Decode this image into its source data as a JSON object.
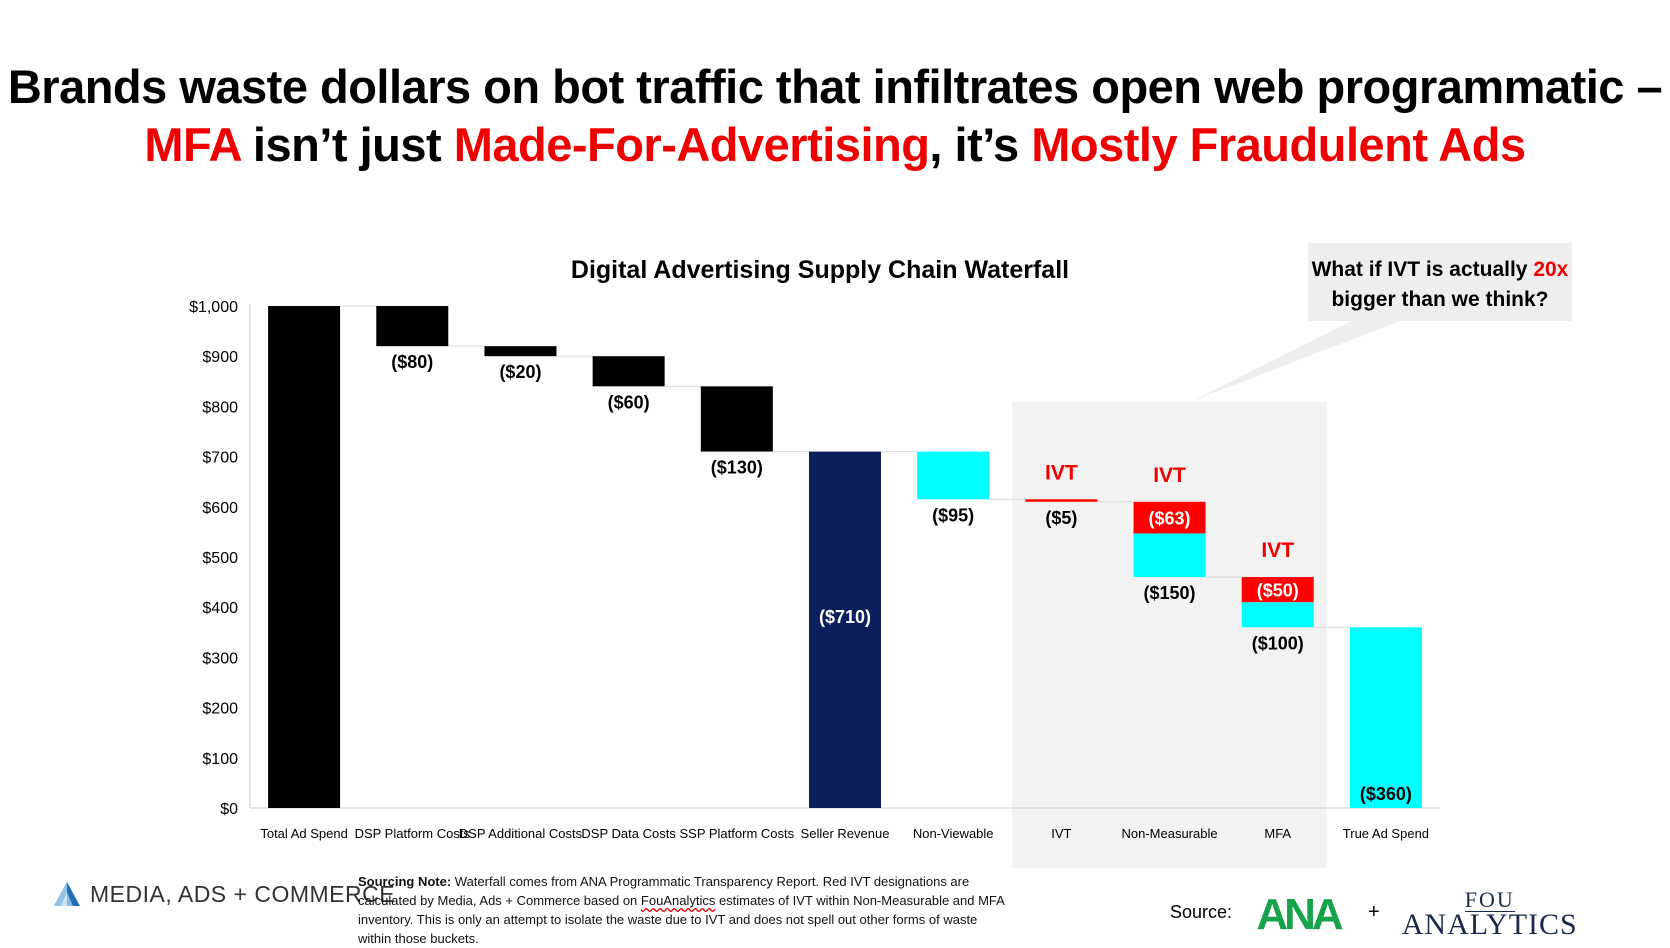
{
  "headline": {
    "line1": "Brands waste dollars on bot traffic that infiltrates open web programmatic –",
    "line2_part1": "MFA",
    "line2_part2": " isn’t just ",
    "line2_part3": "Made-For-Advertising",
    "line2_part4": ", it’s ",
    "line2_part5": "Mostly Fraudulent Ads"
  },
  "callout": {
    "text_before": "What if IVT is actually ",
    "highlight": "20x",
    "text_after": "bigger than we think?"
  },
  "colors": {
    "black": "#000000",
    "navy": "#0a1f5c",
    "cyan": "#00ffff",
    "red": "#ff0000",
    "accent_red": "#ee0000",
    "shade": "#f2f2f2"
  },
  "chart_data": {
    "type": "bar",
    "subtype": "waterfall",
    "title": "Digital Advertising Supply Chain Waterfall",
    "y_ticks": [
      "$0",
      "$100",
      "$200",
      "$300",
      "$400",
      "$500",
      "$600",
      "$700",
      "$800",
      "$900",
      "$1,000"
    ],
    "ylim": [
      0,
      1000
    ],
    "highlight_region_categories": [
      "IVT",
      "Non-Measurable",
      "MFA"
    ],
    "categories": [
      "Total Ad Spend",
      "DSP Platform Costs",
      "DSP Additional Costs",
      "DSP Data Costs",
      "SSP Platform Costs",
      "Seller Revenue",
      "Non-Viewable",
      "IVT",
      "Non-Measurable",
      "MFA",
      "True Ad Spend"
    ],
    "bars": [
      {
        "category": "Total Ad Spend",
        "segments": [
          {
            "base": 0,
            "top": 1000,
            "color": "black"
          }
        ],
        "label": ""
      },
      {
        "category": "DSP Platform Costs",
        "segments": [
          {
            "base": 920,
            "top": 1000,
            "color": "black"
          }
        ],
        "label": "($80)"
      },
      {
        "category": "DSP Additional Costs",
        "segments": [
          {
            "base": 900,
            "top": 920,
            "color": "black"
          }
        ],
        "label": "($20)"
      },
      {
        "category": "DSP Data Costs",
        "segments": [
          {
            "base": 840,
            "top": 900,
            "color": "black"
          }
        ],
        "label": "($60)"
      },
      {
        "category": "SSP Platform Costs",
        "segments": [
          {
            "base": 710,
            "top": 840,
            "color": "black"
          }
        ],
        "label": "($130)"
      },
      {
        "category": "Seller Revenue",
        "segments": [
          {
            "base": 0,
            "top": 710,
            "color": "navy"
          }
        ],
        "label": "($710)"
      },
      {
        "category": "Non-Viewable",
        "segments": [
          {
            "base": 615,
            "top": 710,
            "color": "cyan"
          }
        ],
        "label": "($95)"
      },
      {
        "category": "IVT",
        "segments": [
          {
            "base": 610,
            "top": 615,
            "color": "red"
          }
        ],
        "label": "($5)",
        "ivt_tag": "IVT"
      },
      {
        "category": "Non-Measurable",
        "segments": [
          {
            "base": 460,
            "top": 547,
            "color": "cyan"
          },
          {
            "base": 547,
            "top": 610,
            "color": "red",
            "label": "($63)"
          }
        ],
        "label": "($150)",
        "ivt_tag": "IVT"
      },
      {
        "category": "MFA",
        "segments": [
          {
            "base": 360,
            "top": 410,
            "color": "cyan"
          },
          {
            "base": 410,
            "top": 460,
            "color": "red",
            "label": "($50)"
          }
        ],
        "label": "($100)",
        "ivt_tag": "IVT"
      },
      {
        "category": "True Ad Spend",
        "segments": [
          {
            "base": 0,
            "top": 360,
            "color": "cyan"
          }
        ],
        "label": "($360)"
      }
    ]
  },
  "footer": {
    "brand_name": "MEDIA, ADS + COMMERCE",
    "note_label": "Sourcing Note:",
    "note_text_1": " Waterfall comes from ANA Programmatic Transparency Report. Red IVT designations are calculated by Media, Ads + Commerce based on ",
    "note_underlined": "FouAnalytics",
    "note_text_2": " estimates of IVT within Non-Measurable and MFA inventory. This is only an attempt to isolate the waste due to IVT and does not spell out other forms of waste within those buckets.",
    "source_label": "Source:",
    "ana_logo": "ANA",
    "plus": "+",
    "fou_top": "FOU",
    "fou_bottom": "ANALYTICS"
  }
}
